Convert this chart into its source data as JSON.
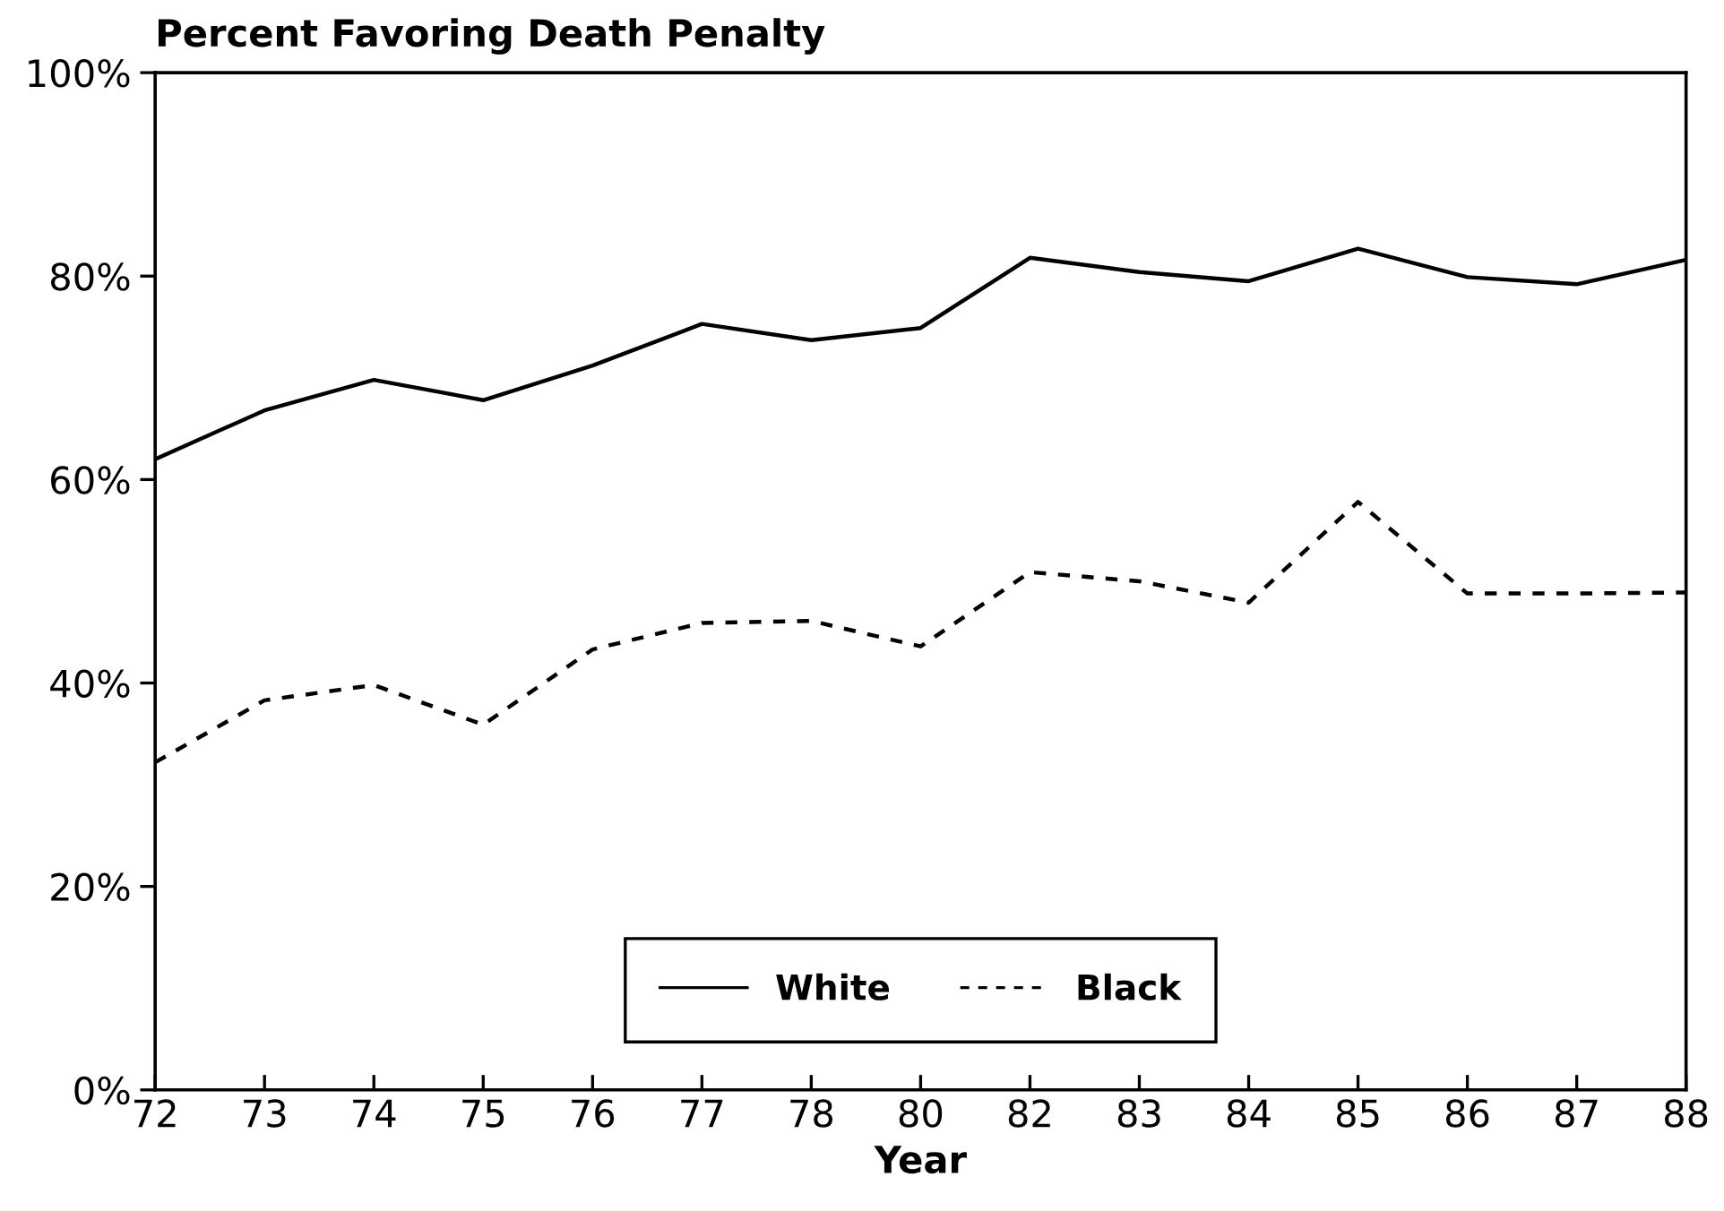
{
  "chart_data": {
    "type": "line",
    "title": "Percent Favoring Death Penalty",
    "xlabel": "Year",
    "categories": [
      "72",
      "73",
      "74",
      "75",
      "76",
      "77",
      "78",
      "80",
      "82",
      "83",
      "84",
      "85",
      "86",
      "87",
      "88"
    ],
    "series": [
      {
        "name": "White",
        "color": "#000000",
        "line_style": "solid",
        "values": [
          62.0,
          66.8,
          69.8,
          67.8,
          71.2,
          75.3,
          73.7,
          74.9,
          81.8,
          80.4,
          79.5,
          82.7,
          79.9,
          79.2,
          81.6
        ]
      },
      {
        "name": "Black",
        "color": "#000000",
        "line_style": "dashed",
        "values": [
          32.2,
          38.3,
          39.8,
          35.9,
          43.3,
          45.9,
          46.1,
          43.6,
          50.9,
          50.0,
          47.9,
          57.8,
          48.8,
          48.8,
          48.9
        ]
      }
    ],
    "ylim": [
      0,
      100
    ],
    "yticks": [
      {
        "value": 0,
        "label": "0%"
      },
      {
        "value": 20,
        "label": "20%"
      },
      {
        "value": 40,
        "label": "40%"
      },
      {
        "value": 60,
        "label": "60%"
      },
      {
        "value": 80,
        "label": "80%"
      },
      {
        "value": 100,
        "label": "100%"
      }
    ],
    "grid": false,
    "legend": "bottom",
    "marker": "none"
  }
}
